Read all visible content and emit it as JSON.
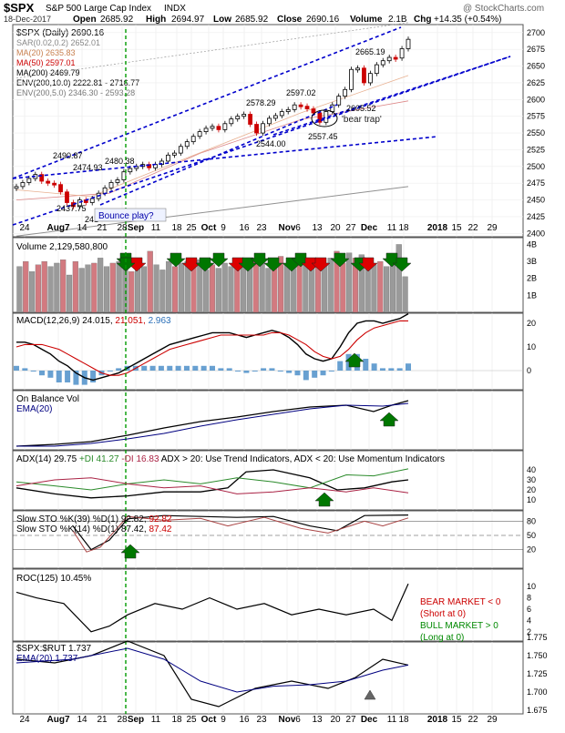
{
  "header": {
    "symbol": "$SPX",
    "name": "S&P 500 Large Cap Index",
    "exchange": "INDX",
    "watermark": "@ StockCharts.com",
    "date": "18-Dec-2017",
    "open_label": "Open",
    "open": "2685.92",
    "high_label": "High",
    "high": "2694.97",
    "low_label": "Low",
    "low": "2685.92",
    "close_label": "Close",
    "close": "2690.16",
    "volume_label": "Volume",
    "volume": "2.1B",
    "chg_label": "Chg",
    "chg": "+14.35 (+0.54%)"
  },
  "colors": {
    "background": "#ffffff",
    "price_up": "#000000",
    "price_down": "#cc0000",
    "ma20": "#e0a080",
    "ma50": "#cc0000",
    "ma200": "#909090",
    "trend_line": "#0000cc",
    "arrow_up": "#007700",
    "arrow_down": "#dd0000",
    "vol_up": "#9a9a9a",
    "vol_down": "#d27a80",
    "macd_hist": "#4d8fc9",
    "adx": "#000000",
    "plus_di": "#2a8a2a",
    "minus_di": "#aa2244",
    "signal_line": "#cc0000",
    "guide": "#009900"
  },
  "x_axis": {
    "labels": [
      "24",
      "Aug7",
      "14",
      "21",
      "28",
      "Sep",
      "11",
      "18",
      "25",
      "Oct",
      "9",
      "16",
      "23",
      "Nov",
      "6",
      "13",
      "20",
      "27",
      "Dec",
      "11",
      "18",
      "2018",
      "15",
      "22",
      "29"
    ]
  },
  "panels": {
    "price": {
      "legend": [
        "$SPX (Daily) 2690.16",
        "SAR(0.02,0.2) 2652.01",
        "MA(20) 2635.83",
        "MA(50) 2597.01",
        "MA(200) 2469.79",
        "ENV(200,10.0) 2222.81 - 2716.77",
        "ENV(200,5.0) 2346.30 - 2593.28"
      ],
      "y_ticks": [
        "2700",
        "2675",
        "2650",
        "2625",
        "2600",
        "2575",
        "2550",
        "2525",
        "2500",
        "2475",
        "2450",
        "2425",
        "2400"
      ],
      "annotations": [
        "2490.87",
        "2474.93",
        "2480.38",
        "2437.75",
        "241",
        "2578.29",
        "2544.00",
        "2597.02",
        "2557.45",
        "2605.52",
        "2665.19"
      ],
      "callouts": [
        "Bounce play?",
        "'bear trap'"
      ]
    },
    "volume": {
      "legend": "Volume 2,129,580,800",
      "y_ticks": [
        "4B",
        "3B",
        "2B",
        "1B"
      ]
    },
    "macd": {
      "legend_a": "MACD(12,26,9) 24.015,",
      "legend_b": "21.051,",
      "legend_c": "2.963",
      "y_ticks": [
        "20",
        "10",
        "0"
      ]
    },
    "obv": {
      "legend_a": "On Balance Vol",
      "legend_b": "EMA(20)"
    },
    "adx": {
      "legend_a": "ADX(14) 29.75",
      "legend_b": "+DI 41.27",
      "legend_c": "-DI 16.83",
      "legend_d": "ADX > 20: Use Trend Indicators, ADX < 20: Use Momentum Indicators",
      "y_ticks": [
        "40",
        "30",
        "20",
        "10"
      ]
    },
    "sto": {
      "legend_1a": "Slow STO %K(39) %D(1) 92.82,",
      "legend_1b": "92.82",
      "legend_2a": "Slow STO %K(14) %D(1) 87.42,",
      "legend_2b": "87.42",
      "y_ticks": [
        "80",
        "50",
        "20"
      ]
    },
    "roc": {
      "legend": "ROC(125) 10.45%",
      "y_ticks": [
        "10",
        "8",
        "6",
        "4",
        "2"
      ],
      "note_bear_1": "BEAR MARKET < 0",
      "note_bear_2": "(Short at 0)",
      "note_bull_1": "BULL MARKET > 0",
      "note_bull_2": "(Long at 0)"
    },
    "ratio": {
      "legend_a": "$SPX:$RUT 1.737",
      "legend_b": "EMA(20) 1.737",
      "y_ticks": [
        "1.775",
        "1.750",
        "1.725",
        "1.700",
        "1.675"
      ]
    }
  },
  "chart_data": {
    "type": "line",
    "title": "$SPX S&P 500 Large Cap Index INDX",
    "x_range": [
      "2017-07-24",
      "2018-01-29"
    ],
    "price_range": [
      2395,
      2712
    ],
    "series": [
      {
        "name": "$SPX (Daily) 2690.16",
        "values": [
          [
            0,
            2470
          ],
          [
            4,
            2476
          ],
          [
            8,
            2482
          ],
          [
            12,
            2488
          ],
          [
            16,
            2478
          ],
          [
            20,
            2475
          ],
          [
            24,
            2473
          ],
          [
            28,
            2462
          ],
          [
            32,
            2446
          ],
          [
            36,
            2440
          ],
          [
            40,
            2450
          ],
          [
            44,
            2446
          ],
          [
            48,
            2452
          ],
          [
            52,
            2460
          ],
          [
            56,
            2468
          ],
          [
            60,
            2476
          ],
          [
            64,
            2480
          ],
          [
            68,
            2492
          ],
          [
            72,
            2497
          ],
          [
            76,
            2500
          ],
          [
            80,
            2503
          ],
          [
            84,
            2498
          ],
          [
            88,
            2503
          ],
          [
            92,
            2508
          ],
          [
            96,
            2517
          ],
          [
            100,
            2520
          ],
          [
            104,
            2530
          ],
          [
            108,
            2537
          ],
          [
            112,
            2545
          ],
          [
            116,
            2552
          ],
          [
            120,
            2557
          ],
          [
            124,
            2560
          ],
          [
            128,
            2555
          ],
          [
            132,
            2564
          ],
          [
            136,
            2571
          ],
          [
            140,
            2575
          ],
          [
            144,
            2578
          ],
          [
            148,
            2563
          ],
          [
            152,
            2550
          ],
          [
            156,
            2564
          ],
          [
            160,
            2572
          ],
          [
            164,
            2576
          ],
          [
            168,
            2582
          ],
          [
            172,
            2585
          ],
          [
            176,
            2592
          ],
          [
            180,
            2590
          ],
          [
            184,
            2586
          ],
          [
            188,
            2580
          ],
          [
            192,
            2566
          ],
          [
            196,
            2582
          ],
          [
            200,
            2592
          ],
          [
            204,
            2605
          ],
          [
            208,
            2615
          ],
          [
            212,
            2645
          ],
          [
            216,
            2647
          ],
          [
            220,
            2625
          ],
          [
            224,
            2639
          ],
          [
            228,
            2652
          ],
          [
            232,
            2658
          ],
          [
            236,
            2663
          ],
          [
            240,
            2662
          ],
          [
            244,
            2676
          ],
          [
            248,
            2690
          ]
        ]
      }
    ],
    "volume_bars_B": [
      2.7,
      3.0,
      2.4,
      2.8,
      3.0,
      2.7,
      2.9,
      3.1,
      2.2,
      3.0,
      2.6,
      2.8,
      2.9,
      3.2,
      2.7,
      2.9,
      3.0,
      2.6,
      2.4,
      2.9,
      2.7,
      3.6,
      2.8,
      2.5,
      3.0,
      2.7,
      2.9,
      3.0,
      2.8,
      3.1,
      2.5,
      2.8,
      2.6,
      2.9,
      2.7,
      3.0,
      2.8,
      2.7,
      3.2,
      2.9,
      2.6,
      3.0,
      3.3,
      2.8,
      2.6,
      3.0,
      2.9,
      2.7,
      3.1,
      2.8,
      3.2,
      3.6,
      2.9,
      3.5,
      3.2,
      3.4,
      3.1,
      2.8,
      3.0,
      2.7,
      3.1,
      4.0,
      2.1
    ],
    "volume_up": [
      1,
      0,
      1,
      0,
      0,
      1,
      1,
      0,
      1,
      0,
      1,
      1,
      0,
      1,
      1,
      0,
      1,
      1,
      0,
      1,
      1,
      0,
      1,
      1,
      1,
      0,
      1,
      1,
      0,
      1,
      1,
      0,
      1,
      1,
      1,
      0,
      1,
      1,
      0,
      1,
      1,
      0,
      0,
      1,
      1,
      0,
      1,
      1,
      0,
      1,
      1,
      0,
      0,
      1,
      0,
      1,
      1,
      1,
      0,
      1,
      1,
      1,
      1
    ],
    "macd": {
      "x_start_index": 0,
      "macd": [
        12,
        12,
        11,
        9,
        7,
        4,
        2,
        -1,
        -3,
        -4,
        -3,
        -2,
        -1,
        1,
        3,
        5,
        7,
        9,
        11,
        12,
        13,
        14,
        15,
        16,
        16,
        16,
        15,
        14,
        15,
        16,
        17,
        16,
        14,
        11,
        7,
        5,
        4,
        5,
        10,
        16,
        20,
        21,
        21,
        20,
        21,
        22,
        24
      ],
      "signal": [
        10,
        11,
        11,
        11,
        10,
        9,
        7,
        5,
        3,
        1,
        -1,
        -2,
        -2,
        -1,
        1,
        3,
        5,
        7,
        9,
        10,
        11,
        12,
        13,
        14,
        15,
        15,
        15,
        15,
        15,
        15,
        16,
        16,
        15,
        13,
        11,
        8,
        6,
        5,
        6,
        9,
        13,
        16,
        18,
        19,
        20,
        21,
        21
      ]
    }
  }
}
